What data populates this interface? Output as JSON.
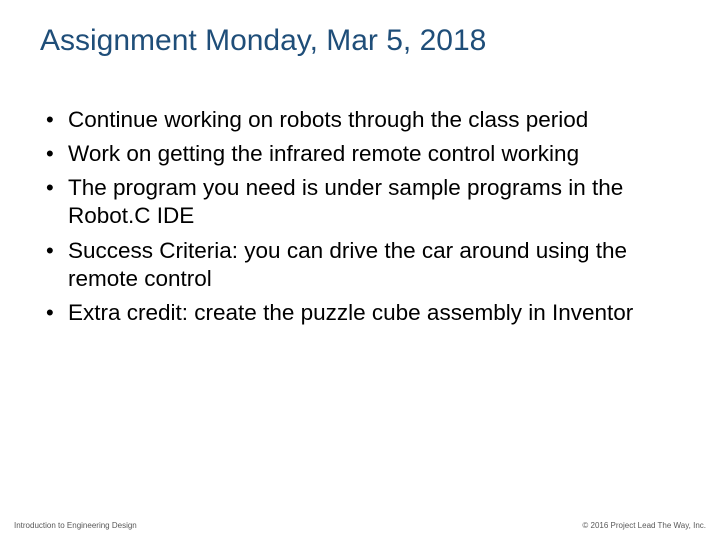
{
  "slide": {
    "title": "Assignment Monday, Mar 5, 2018",
    "title_color": "#1f4e79",
    "title_fontsize": 30,
    "bullet_color": "#000000",
    "bullet_fontsize": 22.5,
    "background_color": "#ffffff",
    "bullets": [
      "Continue working on robots through the class period",
      "Work on getting the infrared remote control working",
      "The program you need is under sample programs in the Robot.C IDE",
      "Success Criteria: you can drive the car around using the remote control",
      "Extra credit: create the puzzle cube assembly in Inventor"
    ],
    "footer_left": "Introduction to Engineering Design",
    "footer_right": "© 2016 Project Lead The Way, Inc.",
    "footer_color": "#595959",
    "footer_fontsize": 8
  }
}
